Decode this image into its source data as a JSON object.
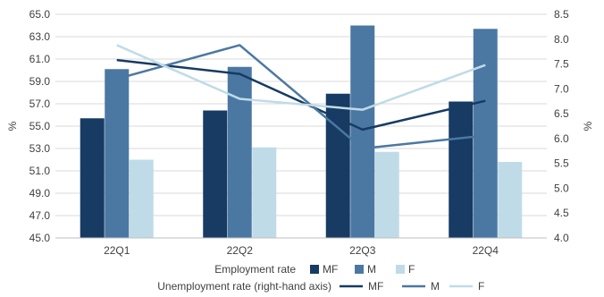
{
  "chart_data": {
    "type": "bar",
    "categories": [
      "22Q1",
      "22Q2",
      "22Q3",
      "22Q4"
    ],
    "ylabel": "%",
    "y2label": "%",
    "ylim": [
      45.0,
      65.0
    ],
    "y2lim": [
      4.0,
      8.5
    ],
    "yticks": [
      "45.0",
      "47.0",
      "49.0",
      "51.0",
      "53.0",
      "55.0",
      "57.0",
      "59.0",
      "61.0",
      "63.0",
      "65.0"
    ],
    "y2ticks": [
      "4.0",
      "4.5",
      "5.0",
      "5.5",
      "6.0",
      "6.5",
      "7.0",
      "7.5",
      "8.0",
      "8.5"
    ],
    "grid": true,
    "legend_position": "bottom",
    "legend": {
      "employment_label": "Employment rate",
      "unemployment_label": "Unemployment rate (right-hand axis)"
    },
    "bar_series": [
      {
        "name": "MF",
        "values": [
          55.7,
          56.4,
          57.9,
          57.2
        ],
        "color": "#173b63"
      },
      {
        "name": "M",
        "values": [
          60.1,
          60.3,
          64.0,
          63.7
        ],
        "color": "#4b78a2"
      },
      {
        "name": "F",
        "values": [
          52.0,
          53.1,
          52.7,
          51.8
        ],
        "color": "#c0dbe8"
      }
    ],
    "line_series": [
      {
        "name": "MF",
        "values": [
          7.58,
          7.3,
          6.18,
          6.76
        ],
        "color": "#173b63"
      },
      {
        "name": "M",
        "values": [
          7.2,
          7.88,
          5.8,
          6.06
        ],
        "color": "#4b78a2"
      },
      {
        "name": "F",
        "values": [
          7.88,
          6.8,
          6.58,
          7.48
        ],
        "color": "#c0dbe8"
      }
    ]
  }
}
